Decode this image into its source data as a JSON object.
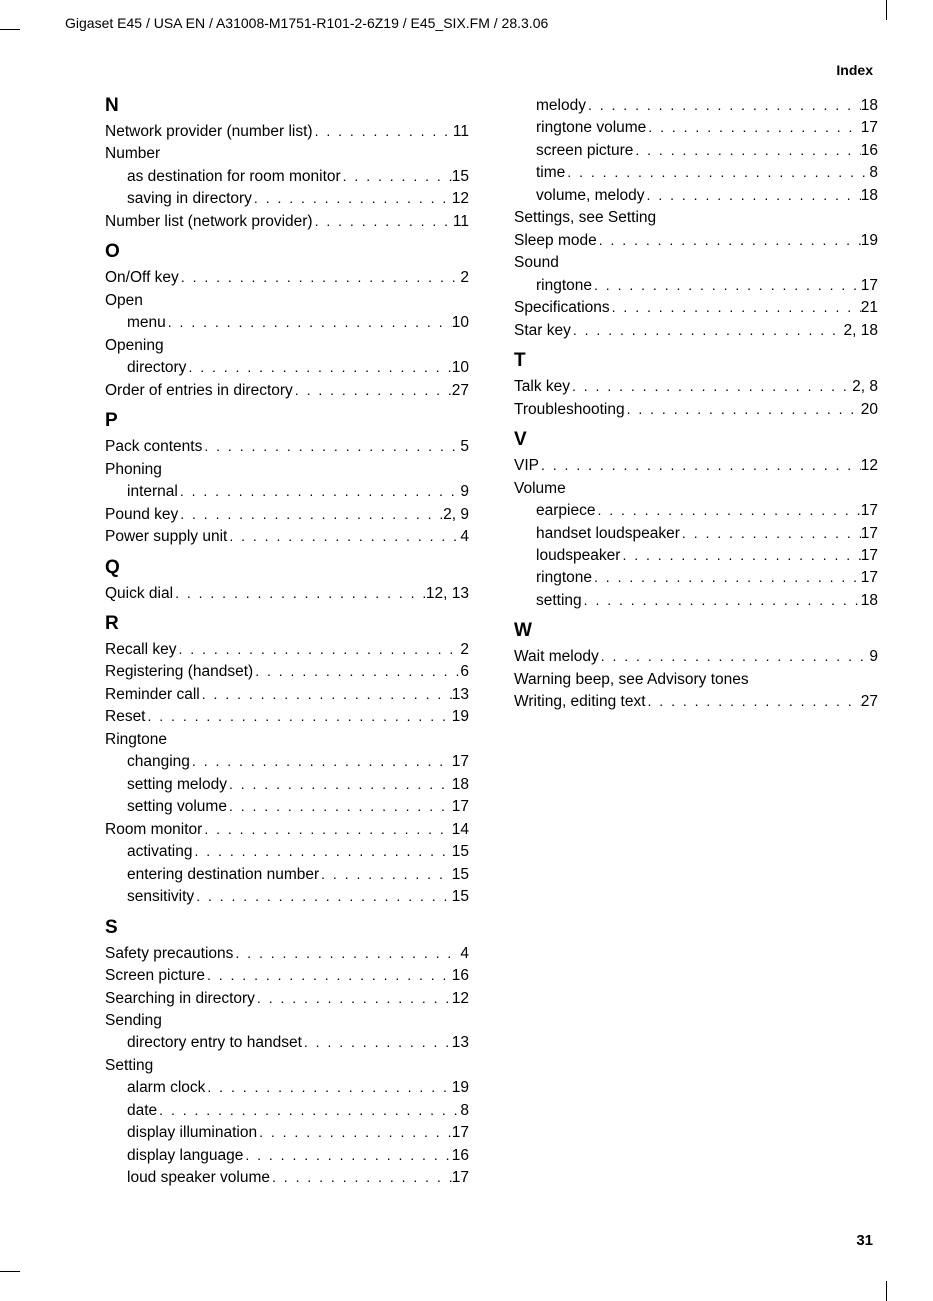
{
  "header": "Gigaset E45 / USA EN / A31008-M1751-R101-2-6Z19  / E45_SIX.FM / 28.3.06",
  "index_label": "Index",
  "page_number": "31",
  "left_column": [
    {
      "type": "heading",
      "text": "N"
    },
    {
      "type": "entry",
      "label": "Network provider (number list)",
      "page": "11"
    },
    {
      "type": "plain",
      "text": "Number"
    },
    {
      "type": "entry",
      "sub": true,
      "label": "as destination for room monitor",
      "page": "15"
    },
    {
      "type": "entry",
      "sub": true,
      "label": "saving in directory",
      "page": "12"
    },
    {
      "type": "entry",
      "label": "Number list (network provider)",
      "page": "11"
    },
    {
      "type": "heading",
      "text": "O"
    },
    {
      "type": "entry",
      "label": "On/Off key",
      "page": "2"
    },
    {
      "type": "plain",
      "text": "Open"
    },
    {
      "type": "entry",
      "sub": true,
      "label": "menu",
      "page": "10"
    },
    {
      "type": "plain",
      "text": "Opening"
    },
    {
      "type": "entry",
      "sub": true,
      "label": "directory",
      "page": "10"
    },
    {
      "type": "entry",
      "label": "Order of entries in directory",
      "page": "27"
    },
    {
      "type": "heading",
      "text": "P"
    },
    {
      "type": "entry",
      "label": "Pack contents",
      "page": "5"
    },
    {
      "type": "plain",
      "text": "Phoning"
    },
    {
      "type": "entry",
      "sub": true,
      "label": "internal",
      "page": "9"
    },
    {
      "type": "entry",
      "label": "Pound key",
      "page": "2, 9"
    },
    {
      "type": "entry",
      "label": "Power supply unit",
      "page": "4"
    },
    {
      "type": "heading",
      "text": "Q"
    },
    {
      "type": "entry",
      "label": "Quick dial",
      "page": "12, 13"
    },
    {
      "type": "heading",
      "text": "R"
    },
    {
      "type": "entry",
      "label": "Recall key",
      "page": "2"
    },
    {
      "type": "entry",
      "label": "Registering (handset)",
      "page": "6"
    },
    {
      "type": "entry",
      "label": "Reminder call",
      "page": "13"
    },
    {
      "type": "entry",
      "label": "Reset",
      "page": "19"
    },
    {
      "type": "plain",
      "text": "Ringtone"
    },
    {
      "type": "entry",
      "sub": true,
      "label": "changing",
      "page": "17"
    },
    {
      "type": "entry",
      "sub": true,
      "label": "setting melody",
      "page": "18"
    },
    {
      "type": "entry",
      "sub": true,
      "label": "setting volume",
      "page": "17"
    },
    {
      "type": "entry",
      "label": "Room monitor",
      "page": "14"
    },
    {
      "type": "entry",
      "sub": true,
      "label": "activating",
      "page": "15"
    },
    {
      "type": "entry",
      "sub": true,
      "label": "entering destination number",
      "page": "15"
    },
    {
      "type": "entry",
      "sub": true,
      "label": "sensitivity",
      "page": "15"
    },
    {
      "type": "heading",
      "text": "S"
    },
    {
      "type": "entry",
      "label": "Safety precautions",
      "page": "4"
    },
    {
      "type": "entry",
      "label": "Screen picture",
      "page": "16"
    },
    {
      "type": "entry",
      "label": "Searching in directory",
      "page": "12"
    },
    {
      "type": "plain",
      "text": "Sending"
    },
    {
      "type": "entry",
      "sub": true,
      "label": "directory entry to handset",
      "page": "13"
    },
    {
      "type": "plain",
      "text": "Setting"
    },
    {
      "type": "entry",
      "sub": true,
      "label": "alarm clock",
      "page": "19"
    },
    {
      "type": "entry",
      "sub": true,
      "label": "date",
      "page": "8"
    },
    {
      "type": "entry",
      "sub": true,
      "label": "display illumination",
      "page": "17"
    },
    {
      "type": "entry",
      "sub": true,
      "label": "display language",
      "page": "16"
    },
    {
      "type": "entry",
      "sub": true,
      "label": "loud speaker volume",
      "page": "17"
    }
  ],
  "right_column": [
    {
      "type": "entry",
      "sub": true,
      "label": "melody",
      "page": "18"
    },
    {
      "type": "entry",
      "sub": true,
      "label": "ringtone volume",
      "page": "17"
    },
    {
      "type": "entry",
      "sub": true,
      "label": "screen picture",
      "page": "16"
    },
    {
      "type": "entry",
      "sub": true,
      "label": "time",
      "page": " 8"
    },
    {
      "type": "entry",
      "sub": true,
      "label": "volume, melody",
      "page": "18"
    },
    {
      "type": "plain",
      "text": "Settings, see Setting"
    },
    {
      "type": "entry",
      "label": "Sleep mode",
      "page": "19"
    },
    {
      "type": "plain",
      "text": "Sound"
    },
    {
      "type": "entry",
      "sub": true,
      "label": "ringtone",
      "page": "17"
    },
    {
      "type": "entry",
      "label": "Specifications",
      "page": "21"
    },
    {
      "type": "entry",
      "label": "Star key",
      "page": "2, 18"
    },
    {
      "type": "heading",
      "text": "T"
    },
    {
      "type": "entry",
      "label": "Talk key",
      "page": "2, 8"
    },
    {
      "type": "entry",
      "label": "Troubleshooting",
      "page": "20"
    },
    {
      "type": "heading",
      "text": "V"
    },
    {
      "type": "entry",
      "label": "VIP",
      "page": "12"
    },
    {
      "type": "plain",
      "text": "Volume"
    },
    {
      "type": "entry",
      "sub": true,
      "label": "earpiece",
      "page": "17"
    },
    {
      "type": "entry",
      "sub": true,
      "label": "handset loudspeaker",
      "page": "17"
    },
    {
      "type": "entry",
      "sub": true,
      "label": "loudspeaker",
      "page": "17"
    },
    {
      "type": "entry",
      "sub": true,
      "label": "ringtone",
      "page": "17"
    },
    {
      "type": "entry",
      "sub": true,
      "label": "setting",
      "page": "18"
    },
    {
      "type": "heading",
      "text": "W"
    },
    {
      "type": "entry",
      "label": "Wait melody",
      "page": " 9"
    },
    {
      "type": "plain",
      "text": "Warning beep, see Advisory tones"
    },
    {
      "type": "entry",
      "label": "Writing, editing text",
      "page": "27"
    }
  ]
}
